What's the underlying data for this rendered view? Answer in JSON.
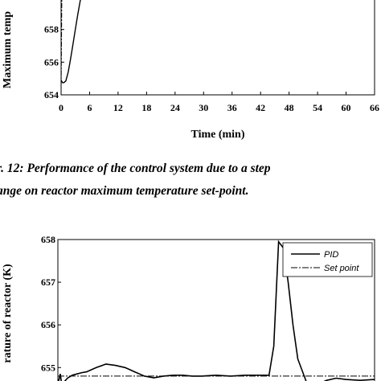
{
  "chart_data": [
    {
      "type": "line",
      "title": "",
      "xlabel": "Time (min)",
      "ylabel": "Maximum temp",
      "xlim": [
        0,
        66
      ],
      "ylim": [
        654,
        660
      ],
      "x_ticks": [
        "0",
        "6",
        "12",
        "18",
        "24",
        "30",
        "36",
        "42",
        "48",
        "54",
        "60",
        "66"
      ],
      "y_ticks": [
        "654",
        "656",
        "658"
      ],
      "series": [
        {
          "x": [
            0,
            0.3,
            0.6,
            1.0,
            1.5,
            2.0,
            2.5,
            3.0,
            3.5,
            4.0,
            4.2
          ],
          "y": [
            654.9,
            654.75,
            654.75,
            654.85,
            655.4,
            656.2,
            657.1,
            658.0,
            658.9,
            659.7,
            660
          ]
        },
        {
          "x": [
            0,
            0.15
          ],
          "y": [
            654.0,
            660
          ]
        }
      ]
    },
    {
      "type": "line",
      "title": "",
      "xlabel": "",
      "ylabel": "rature of reactor (K)",
      "ylim": [
        654.6,
        658
      ],
      "y_ticks": [
        "655",
        "656",
        "657",
        "658"
      ],
      "legend_position": "top-right",
      "series": [
        {
          "name": "PID",
          "x": [
            0,
            0.5,
            0.8,
            2,
            3,
            4,
            5,
            6,
            8,
            10,
            12,
            14,
            15,
            16,
            17,
            18,
            19,
            20,
            22,
            24,
            26,
            28,
            30,
            33,
            36,
            39,
            42,
            44,
            45,
            46,
            47,
            48,
            49,
            50,
            51,
            52,
            54,
            56,
            58,
            60,
            63,
            66
          ],
          "y": [
            654.6,
            654.85,
            654.6,
            654.75,
            654.82,
            654.85,
            654.88,
            654.9,
            655.0,
            655.08,
            655.05,
            655.0,
            654.95,
            654.9,
            654.85,
            654.8,
            654.78,
            654.76,
            654.8,
            654.82,
            654.82,
            654.8,
            654.8,
            654.82,
            654.8,
            654.82,
            654.82,
            654.82,
            655.5,
            657.95,
            657.8,
            657.0,
            656.0,
            655.2,
            654.9,
            654.6,
            654.6,
            654.7,
            654.75,
            654.72,
            654.7,
            654.72
          ]
        },
        {
          "name": "Set point",
          "x": [
            0,
            66
          ],
          "y": [
            654.8,
            654.8
          ]
        }
      ]
    }
  ],
  "caption": {
    "line1": "r. 12: Performance of the control system due to a step",
    "line2": "ange on reactor maximum temperature set-point."
  }
}
